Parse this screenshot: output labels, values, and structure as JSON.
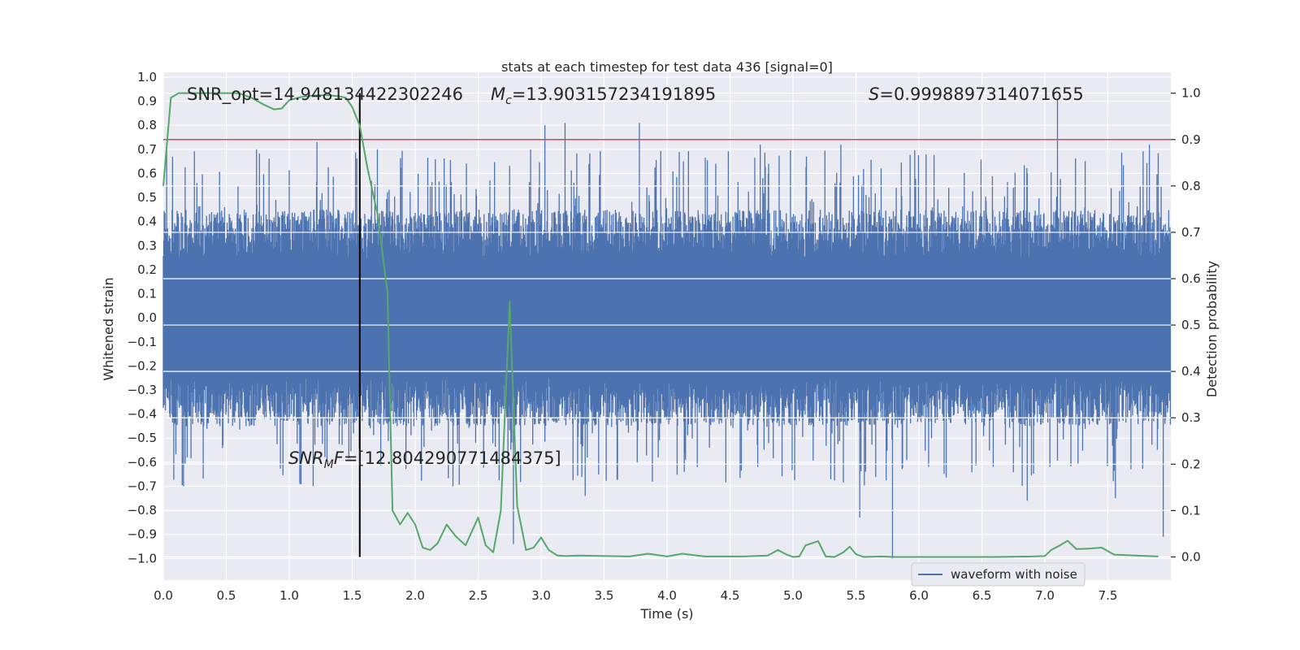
{
  "chart_data": {
    "type": "line",
    "title": "stats at each timestep for test data 436 [signal=0]",
    "xlabel": "Time (s)",
    "ylabel_left": "Whitened strain",
    "ylabel_right": "Detection probability",
    "xlim": [
      0.0,
      8.0
    ],
    "ylim_left": [
      -1.09,
      1.02
    ],
    "ylim_right": [
      -0.05,
      1.045
    ],
    "x_ticks": [
      "0.0",
      "0.5",
      "1.0",
      "1.5",
      "2.0",
      "2.5",
      "3.0",
      "3.5",
      "4.0",
      "4.5",
      "5.0",
      "5.5",
      "6.0",
      "6.5",
      "7.0",
      "7.5"
    ],
    "y_left_ticks": [
      "1.0",
      "0.9",
      "0.8",
      "0.7",
      "0.6",
      "0.5",
      "0.4",
      "0.3",
      "0.2",
      "0.1",
      "0.0",
      "−0.1",
      "−0.2",
      "−0.3",
      "−0.4",
      "−0.5",
      "−0.6",
      "−0.7",
      "−0.8",
      "−0.9",
      "−1.0"
    ],
    "y_right_ticks": [
      "1.0",
      "0.9",
      "0.8",
      "0.7",
      "0.6",
      "0.5",
      "0.4",
      "0.3",
      "0.2",
      "0.1",
      "0.0"
    ],
    "grid": true,
    "annotations": {
      "snr_opt": "SNR_opt=14.948134422302246",
      "mc_sym": "M",
      "mc_sub": "c",
      "mc_val": "=13.903157234191895",
      "s_sym": "S",
      "s_val": "=0.9998897314071655",
      "snrmf_sym": "SNR",
      "snrmf_sub": "M",
      "snrmf_f": "F",
      "snrmf_val": "=[12.804290771484375]"
    },
    "threshold": {
      "value": 0.9,
      "axis": "right",
      "color": "#c44e52"
    },
    "marker_time": {
      "x": 1.56,
      "color": "#000000"
    },
    "series": [
      {
        "name": "waveform with noise",
        "axis": "left",
        "color": "#4c72b0",
        "kind": "noisy-waveform",
        "time_range": [
          0.0,
          8.0
        ],
        "envelope_typical": 0.45,
        "peaks": [
          {
            "x": 1.22,
            "y": 0.73
          },
          {
            "x": 1.7,
            "y": 0.7
          },
          {
            "x": 3.03,
            "y": 0.8
          },
          {
            "x": 3.19,
            "y": 0.81
          },
          {
            "x": 3.78,
            "y": 0.81
          },
          {
            "x": 7.1,
            "y": 0.91
          },
          {
            "x": 7.83,
            "y": 0.72
          },
          {
            "x": 0.74,
            "y": 0.7
          },
          {
            "x": 5.38,
            "y": 0.72
          },
          {
            "x": 4.74,
            "y": 0.72
          },
          {
            "x": 2.78,
            "y": -0.94
          },
          {
            "x": 5.79,
            "y": -1.0
          },
          {
            "x": 7.94,
            "y": -0.91
          },
          {
            "x": 5.53,
            "y": -0.83
          },
          {
            "x": 0.16,
            "y": -0.7
          },
          {
            "x": 1.19,
            "y": -0.7
          },
          {
            "x": 7.56,
            "y": -0.75
          },
          {
            "x": 6.86,
            "y": -0.76
          },
          {
            "x": 3.35,
            "y": -0.74
          },
          {
            "x": 2.3,
            "y": -0.7
          }
        ]
      },
      {
        "name": "",
        "axis": "right",
        "color": "#55a868",
        "x": [
          0.0,
          0.06,
          0.12,
          0.2,
          0.3,
          0.4,
          0.5,
          0.6,
          0.7,
          0.8,
          0.88,
          0.94,
          1.0,
          1.1,
          1.2,
          1.3,
          1.4,
          1.45,
          1.5,
          1.56,
          1.62,
          1.7,
          1.78,
          1.82,
          1.88,
          1.94,
          2.0,
          2.06,
          2.12,
          2.18,
          2.25,
          2.32,
          2.4,
          2.5,
          2.56,
          2.62,
          2.68,
          2.75,
          2.81,
          2.88,
          2.94,
          3.0,
          3.06,
          3.13,
          3.2,
          3.3,
          3.5,
          3.7,
          3.85,
          4.0,
          4.12,
          4.3,
          4.6,
          4.8,
          4.88,
          4.95,
          5.0,
          5.05,
          5.1,
          5.2,
          5.26,
          5.33,
          5.4,
          5.45,
          5.5,
          5.56,
          5.7,
          5.8,
          6.0,
          6.3,
          6.6,
          6.9,
          7.0,
          7.05,
          7.12,
          7.18,
          7.25,
          7.35,
          7.45,
          7.55,
          7.9
        ],
        "y": [
          0.8,
          0.99,
          1.0,
          1.0,
          1.0,
          1.0,
          1.0,
          1.0,
          0.99,
          0.975,
          0.965,
          0.967,
          0.985,
          0.992,
          0.995,
          0.996,
          0.993,
          0.99,
          0.97,
          0.93,
          0.84,
          0.74,
          0.57,
          0.1,
          0.07,
          0.095,
          0.07,
          0.02,
          0.015,
          0.03,
          0.07,
          0.045,
          0.025,
          0.085,
          0.025,
          0.01,
          0.1,
          0.55,
          0.11,
          0.015,
          0.02,
          0.042,
          0.015,
          0.003,
          0.002,
          0.003,
          0.002,
          0.001,
          0.007,
          0.001,
          0.007,
          0.001,
          0.001,
          0.003,
          0.015,
          0.005,
          0.0,
          0.001,
          0.025,
          0.034,
          0.001,
          0.0,
          0.01,
          0.022,
          0.006,
          0.0,
          0.001,
          0.0,
          0.0,
          0.0,
          0.0,
          0.001,
          0.002,
          0.015,
          0.025,
          0.035,
          0.017,
          0.018,
          0.02,
          0.005,
          0.001
        ]
      }
    ],
    "legend": {
      "placement": "lower-right",
      "entries": [
        "waveform with noise"
      ]
    }
  }
}
